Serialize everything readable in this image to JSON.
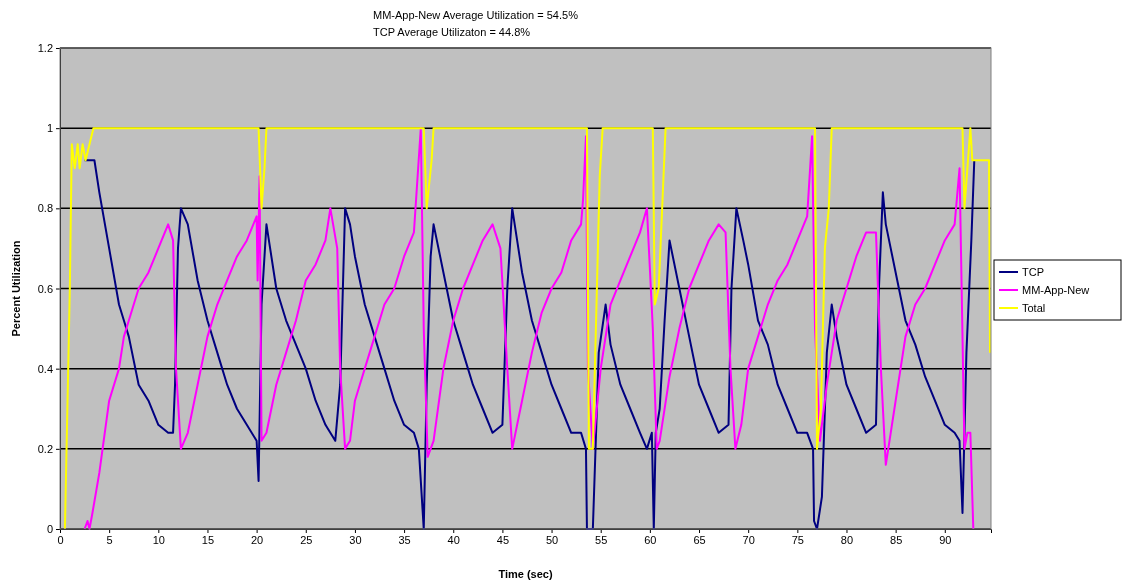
{
  "chart_data": {
    "type": "line",
    "xlabel": "Time (sec)",
    "ylabel": "Percent Utilization",
    "annotations": [
      "MM-App-New Average Utilization = 54.5%",
      "TCP Average Utilizaton = 44.8%"
    ],
    "xlim": [
      0,
      94.7
    ],
    "xticks": [
      0,
      5,
      10,
      15,
      20,
      25,
      30,
      35,
      40,
      45,
      50,
      55,
      60,
      65,
      70,
      75,
      80,
      85,
      90
    ],
    "ylim": [
      0,
      1.2
    ],
    "yticks": [
      0,
      0.2,
      0.4,
      0.6,
      0.8,
      1,
      1.2
    ],
    "grid": "y",
    "legend": "right",
    "line_style": "solid",
    "marker": "none",
    "series": [
      {
        "name": "TCP",
        "color": "#000080",
        "x": [
          2.5,
          3.5,
          4,
          5,
          6,
          6.5,
          7,
          8,
          9,
          10,
          11,
          11.5,
          11.7,
          12,
          12.3,
          13,
          14,
          15,
          16,
          17,
          18,
          19,
          20,
          20.2,
          20.5,
          21,
          22,
          23,
          24,
          25,
          26,
          27,
          28,
          28.5,
          29,
          29.5,
          30,
          31,
          32,
          33,
          34,
          35,
          36,
          36.5,
          37,
          37.3,
          37.7,
          38,
          39,
          40,
          41,
          42,
          43,
          44,
          45,
          45.5,
          46,
          46.5,
          47,
          48,
          49,
          50,
          51,
          52,
          53,
          53.5,
          53.6,
          54.2,
          54.8,
          55.5,
          56,
          57,
          58,
          59,
          59.7,
          60.2,
          60.4,
          60.6,
          61,
          61.5,
          62,
          63,
          64,
          65,
          66,
          67,
          68,
          68.3,
          68.8,
          69.5,
          70,
          71,
          72,
          73,
          74,
          75,
          76,
          76.6,
          76.7,
          77,
          77.5,
          78,
          78.5,
          79,
          80,
          81,
          82,
          83,
          83.3,
          83.7,
          84,
          85,
          86,
          87,
          88,
          89,
          90,
          91,
          91.5,
          91.8,
          92.2,
          92.7,
          93
        ],
        "values": [
          0.92,
          0.92,
          0.84,
          0.7,
          0.56,
          0.52,
          0.48,
          0.36,
          0.32,
          0.26,
          0.24,
          0.24,
          0.36,
          0.7,
          0.8,
          0.76,
          0.62,
          0.52,
          0.44,
          0.36,
          0.3,
          0.26,
          0.22,
          0.12,
          0.56,
          0.76,
          0.6,
          0.52,
          0.46,
          0.4,
          0.32,
          0.26,
          0.22,
          0.36,
          0.8,
          0.76,
          0.68,
          0.56,
          0.48,
          0.4,
          0.32,
          0.26,
          0.24,
          0.2,
          0,
          0.36,
          0.68,
          0.76,
          0.64,
          0.52,
          0.44,
          0.36,
          0.3,
          0.24,
          0.26,
          0.6,
          0.8,
          0.72,
          0.64,
          0.52,
          0.44,
          0.36,
          0.3,
          0.24,
          0.24,
          0.2,
          0,
          0,
          0.44,
          0.56,
          0.46,
          0.36,
          0.3,
          0.24,
          0.2,
          0.24,
          0,
          0.24,
          0.3,
          0.52,
          0.72,
          0.6,
          0.48,
          0.36,
          0.3,
          0.24,
          0.26,
          0.6,
          0.8,
          0.72,
          0.66,
          0.52,
          0.46,
          0.36,
          0.3,
          0.24,
          0.24,
          0.2,
          0.02,
          0,
          0.08,
          0.44,
          0.56,
          0.48,
          0.36,
          0.3,
          0.24,
          0.26,
          0.6,
          0.84,
          0.76,
          0.64,
          0.52,
          0.46,
          0.38,
          0.32,
          0.26,
          0.24,
          0.22,
          0.04,
          0.44,
          0.72,
          0.92
        ]
      },
      {
        "name": "MM-App-New",
        "color": "#ff00ff",
        "x": [
          2.5,
          2.8,
          3,
          3.3,
          4,
          5,
          6,
          6.5,
          7,
          8,
          9,
          10,
          11,
          11.5,
          11.8,
          12.3,
          13,
          14,
          15,
          16,
          17,
          18,
          19,
          20,
          20.1,
          20.3,
          20.5,
          21,
          22,
          23,
          24,
          25,
          26,
          27,
          27.5,
          28.2,
          28.5,
          29,
          29.5,
          30,
          31,
          32,
          33,
          34,
          35,
          36,
          36.7,
          37,
          37.4,
          38,
          39,
          40,
          41,
          42,
          43,
          44,
          44.8,
          45.5,
          46,
          46.5,
          47,
          48,
          49,
          50,
          51,
          52,
          53,
          53.2,
          53.5,
          53.7,
          54.2,
          55,
          56,
          57,
          58,
          59,
          59.7,
          60.3,
          60.7,
          61,
          62,
          63,
          64,
          65,
          66,
          67,
          67.7,
          68.2,
          68.7,
          69.3,
          70,
          71,
          72,
          73,
          74,
          75,
          76,
          76.5,
          76.8,
          77.3,
          78,
          79,
          80,
          81,
          82,
          83,
          83.5,
          84,
          84.5,
          85,
          86,
          87,
          88,
          89,
          90,
          91,
          91.5,
          92,
          92.3,
          92.6,
          92.9
        ],
        "values": [
          0,
          0.02,
          0,
          0.04,
          0.14,
          0.32,
          0.4,
          0.48,
          0.52,
          0.6,
          0.64,
          0.7,
          0.76,
          0.72,
          0.4,
          0.2,
          0.24,
          0.36,
          0.48,
          0.56,
          0.62,
          0.68,
          0.72,
          0.78,
          0.62,
          0.88,
          0.22,
          0.24,
          0.36,
          0.44,
          0.52,
          0.62,
          0.66,
          0.72,
          0.8,
          0.7,
          0.4,
          0.2,
          0.22,
          0.32,
          0.4,
          0.48,
          0.56,
          0.6,
          0.68,
          0.74,
          1,
          0.5,
          0.18,
          0.22,
          0.4,
          0.52,
          0.6,
          0.66,
          0.72,
          0.76,
          0.7,
          0.4,
          0.2,
          0.26,
          0.32,
          0.44,
          0.54,
          0.6,
          0.64,
          0.72,
          0.76,
          0.82,
          0.98,
          0.4,
          0.2,
          0.4,
          0.56,
          0.62,
          0.68,
          0.74,
          0.8,
          0.5,
          0.2,
          0.22,
          0.38,
          0.5,
          0.6,
          0.66,
          0.72,
          0.76,
          0.74,
          0.4,
          0.2,
          0.26,
          0.4,
          0.48,
          0.56,
          0.62,
          0.66,
          0.72,
          0.78,
          0.98,
          0.5,
          0.22,
          0.36,
          0.52,
          0.6,
          0.68,
          0.74,
          0.74,
          0.4,
          0.16,
          0.24,
          0.32,
          0.48,
          0.56,
          0.6,
          0.66,
          0.72,
          0.76,
          0.9,
          0.2,
          0.24,
          0.24,
          0
        ]
      },
      {
        "name": "Total",
        "color": "#ffff00",
        "x": [
          0.5,
          1,
          1.2,
          1.5,
          1.8,
          2,
          2.3,
          2.6,
          3,
          3.4,
          20.2,
          20.5,
          20.8,
          21,
          37,
          37.3,
          37.8,
          38,
          53.6,
          53.8,
          54.2,
          54.9,
          55.2,
          60.3,
          60.5,
          60.9,
          61.6,
          76.8,
          77,
          77.4,
          77.8,
          78.2,
          78.5,
          91.8,
          92,
          92.6,
          92.8,
          94.5,
          94.6
        ],
        "values": [
          0,
          0.6,
          0.96,
          0.9,
          0.96,
          0.9,
          0.96,
          0.92,
          0.96,
          1,
          1,
          0.8,
          0.9,
          1,
          1,
          0.8,
          0.92,
          1,
          1,
          0.2,
          0.2,
          0.88,
          1,
          1,
          0.56,
          0.6,
          1,
          1,
          0.2,
          0.3,
          0.7,
          0.8,
          1,
          1,
          0.8,
          1,
          0.92,
          0.92,
          0.44
        ]
      }
    ]
  }
}
